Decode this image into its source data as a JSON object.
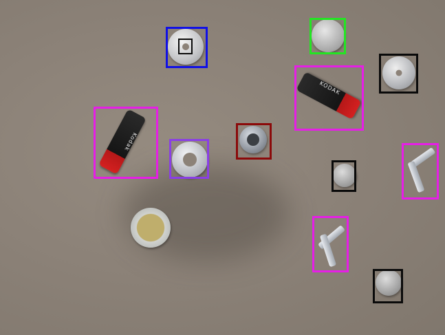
{
  "image": {
    "description_objects": [
      {
        "kind": "battery",
        "label": "Kodak"
      },
      {
        "kind": "battery",
        "label": "KODAK"
      }
    ],
    "box_colors": {
      "blue": "#1010e6",
      "green": "#22e622",
      "magenta": "#e61ee6",
      "black": "#0a0a0a",
      "violet": "#8a3ee6",
      "dark_red": "#8b0a0a"
    }
  }
}
